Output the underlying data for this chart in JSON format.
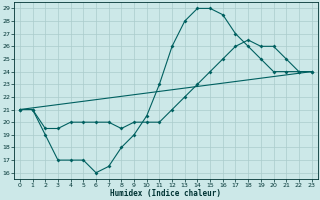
{
  "xlabel": "Humidex (Indice chaleur)",
  "background_color": "#cce8e8",
  "grid_color": "#aacccc",
  "line_color": "#006060",
  "xlim": [
    -0.5,
    23.5
  ],
  "ylim": [
    15.5,
    29.5
  ],
  "xticks": [
    0,
    1,
    2,
    3,
    4,
    5,
    6,
    7,
    8,
    9,
    10,
    11,
    12,
    13,
    14,
    15,
    16,
    17,
    18,
    19,
    20,
    21,
    22,
    23
  ],
  "yticks": [
    16,
    17,
    18,
    19,
    20,
    21,
    22,
    23,
    24,
    25,
    26,
    27,
    28,
    29
  ],
  "line1_x": [
    0,
    1,
    2,
    3,
    4,
    5,
    6,
    7,
    8,
    9,
    10,
    11,
    12,
    13,
    14,
    15,
    16,
    17,
    18,
    19,
    20,
    21,
    22,
    23
  ],
  "line1_y": [
    21,
    21,
    19,
    17,
    17,
    17,
    16,
    16.5,
    18,
    19,
    20.5,
    23,
    26,
    28,
    29,
    29,
    28.5,
    27,
    26,
    25,
    24,
    24,
    24,
    24
  ],
  "line2_x": [
    0,
    1,
    2,
    3,
    4,
    5,
    6,
    7,
    8,
    9,
    10,
    11,
    12,
    13,
    14,
    15,
    16,
    17,
    18,
    19,
    20,
    21,
    22,
    23
  ],
  "line2_y": [
    21,
    21,
    19.5,
    19.5,
    20,
    20,
    20,
    20,
    19.5,
    20,
    20,
    20,
    21,
    22,
    23,
    24,
    25,
    26,
    26.5,
    26,
    26,
    25,
    24,
    24
  ],
  "line3_x": [
    0,
    23
  ],
  "line3_y": [
    21,
    24
  ]
}
